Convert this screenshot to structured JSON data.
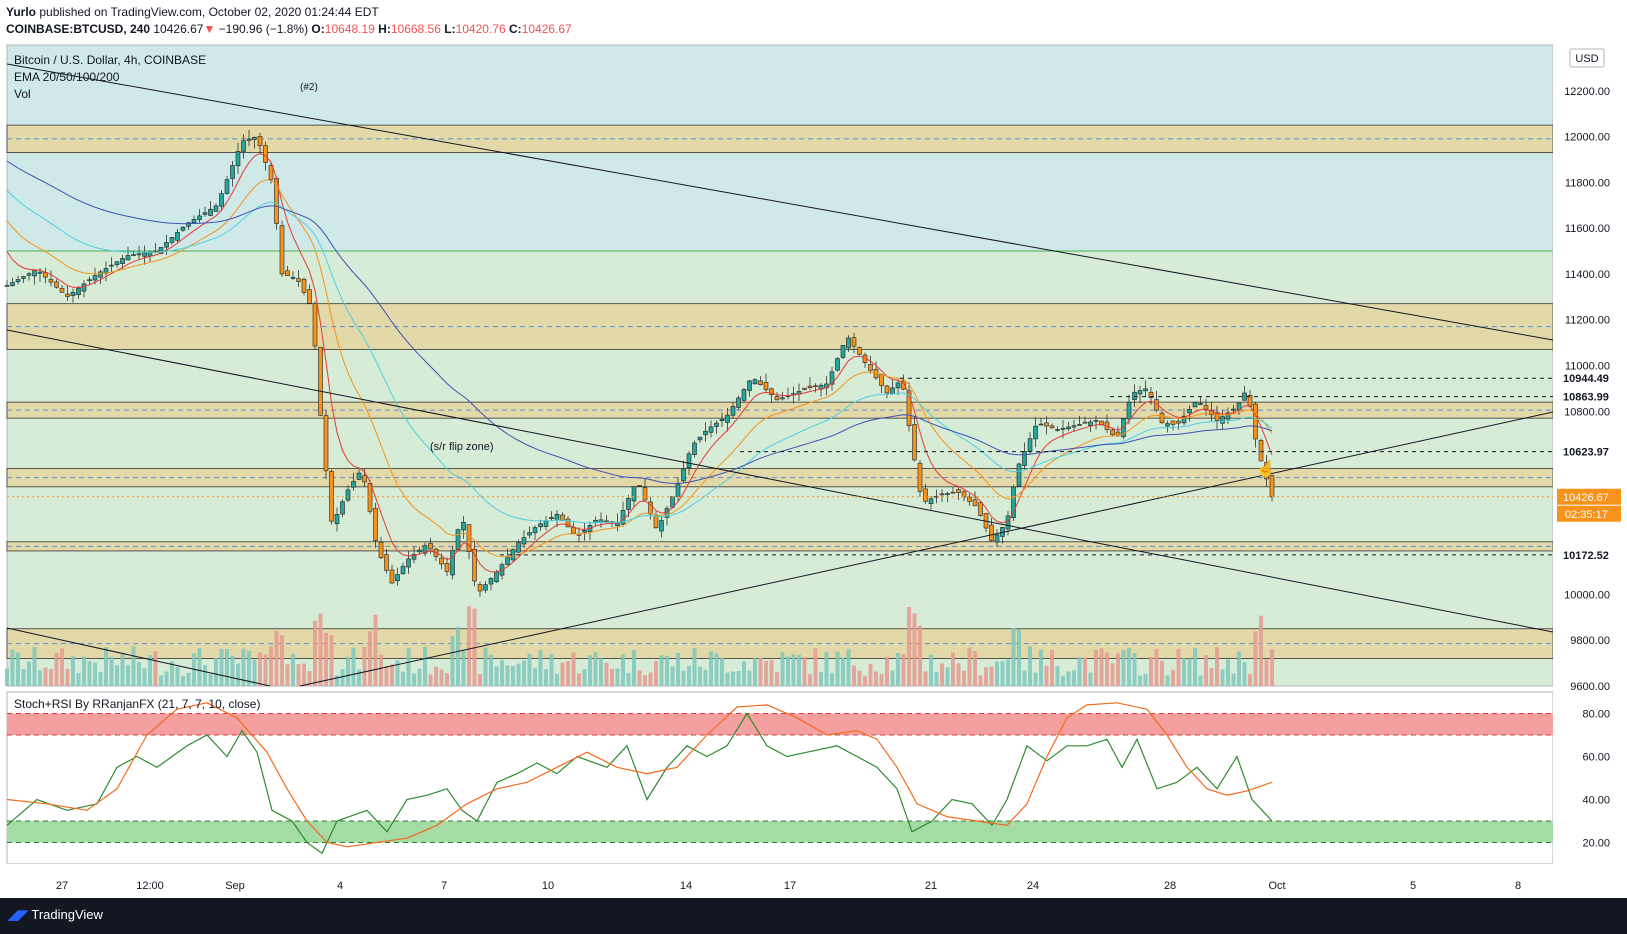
{
  "header": {
    "author": "Yurlo",
    "published": "published on TradingView.com, October 02, 2020 01:24:44 EDT",
    "symbol": "COINBASE:BTCUSD, 240",
    "last": "10426.67",
    "change": "−190.96 (−1.8%)",
    "o_label": "O:",
    "o": "10648.19",
    "h_label": "H:",
    "h": "10668.56",
    "l_label": "L:",
    "l": "10420.76",
    "c_label": "C:",
    "c": "10426.67"
  },
  "legend": {
    "title": "Bitcoin / U.S. Dollar, 4h, COINBASE",
    "ema": "EMA 20/50/100/200",
    "vol": "Vol",
    "label_2": "(#2)",
    "flip_zone": "(s/r flip zone)"
  },
  "currency": "USD",
  "oscillator": {
    "title": "Stoch+RSI By RRanjanFX (21, 7, 7, 10, close)"
  },
  "footer": {
    "brand": "TradingView"
  },
  "colors": {
    "bull": "#26a69a",
    "bear": "#f7931a",
    "blue_zone": "#cfe9e9",
    "green_zone": "#d6ecd6",
    "sr_zone": "#e3d9a8",
    "price_tag": "#f7931a"
  },
  "chart_data": [
    {
      "type": "candlestick",
      "title": "Bitcoin / U.S. Dollar, 4h, COINBASE",
      "ylim": [
        9600,
        12400
      ],
      "y_ticks": [
        "12200.00",
        "12000.00",
        "11800.00",
        "11600.00",
        "11400.00",
        "11200.00",
        "11000.00",
        "10800.00",
        "10000.00",
        "9800.00",
        "9600.00"
      ],
      "x_ticks": [
        "27",
        "12:00",
        "Sep",
        "4",
        "7",
        "10",
        "14",
        "17",
        "21",
        "24",
        "28",
        "Oct",
        "5",
        "8"
      ],
      "price_labels": [
        {
          "value": 10944.49,
          "text": "10944.49"
        },
        {
          "value": 10863.99,
          "text": "10863.99"
        },
        {
          "value": 10623.97,
          "text": "10623.97"
        },
        {
          "value": 10426.67,
          "text": "10426.67",
          "sub": "02:35:17"
        },
        {
          "value": 10172.52,
          "text": "10172.52"
        }
      ],
      "zones": [
        {
          "from": 11930,
          "to": 12050,
          "kind": "sr"
        },
        {
          "from": 11070,
          "to": 11270,
          "kind": "sr"
        },
        {
          "from": 10770,
          "to": 10840,
          "kind": "sr"
        },
        {
          "from": 10470,
          "to": 10550,
          "kind": "sr"
        },
        {
          "from": 10190,
          "to": 10230,
          "kind": "sr"
        },
        {
          "from": 9720,
          "to": 9850,
          "kind": "sr"
        }
      ],
      "ema_series": [
        "EMA 20",
        "EMA 50",
        "EMA 100",
        "EMA 200"
      ],
      "close_points": [
        [
          0,
          11350
        ],
        [
          30,
          11420
        ],
        [
          60,
          11300
        ],
        [
          90,
          11400
        ],
        [
          120,
          11480
        ],
        [
          150,
          11500
        ],
        [
          180,
          11620
        ],
        [
          210,
          11700
        ],
        [
          235,
          11980
        ],
        [
          250,
          12000
        ],
        [
          265,
          11800
        ],
        [
          275,
          11400
        ],
        [
          290,
          11380
        ],
        [
          305,
          11250
        ],
        [
          315,
          10700
        ],
        [
          325,
          10300
        ],
        [
          340,
          10450
        ],
        [
          355,
          10550
        ],
        [
          370,
          10200
        ],
        [
          385,
          10050
        ],
        [
          400,
          10150
        ],
        [
          420,
          10220
        ],
        [
          440,
          10100
        ],
        [
          455,
          10350
        ],
        [
          470,
          10000
        ],
        [
          490,
          10100
        ],
        [
          510,
          10220
        ],
        [
          530,
          10300
        ],
        [
          550,
          10350
        ],
        [
          570,
          10250
        ],
        [
          590,
          10330
        ],
        [
          610,
          10310
        ],
        [
          630,
          10500
        ],
        [
          650,
          10280
        ],
        [
          670,
          10470
        ],
        [
          685,
          10650
        ],
        [
          700,
          10720
        ],
        [
          720,
          10780
        ],
        [
          745,
          10950
        ],
        [
          770,
          10850
        ],
        [
          800,
          10900
        ],
        [
          820,
          10920
        ],
        [
          840,
          11130
        ],
        [
          860,
          11000
        ],
        [
          880,
          10880
        ],
        [
          895,
          10940
        ],
        [
          905,
          10650
        ],
        [
          915,
          10400
        ],
        [
          930,
          10430
        ],
        [
          950,
          10450
        ],
        [
          970,
          10380
        ],
        [
          985,
          10230
        ],
        [
          1000,
          10320
        ],
        [
          1010,
          10550
        ],
        [
          1030,
          10750
        ],
        [
          1050,
          10720
        ],
        [
          1070,
          10740
        ],
        [
          1090,
          10760
        ],
        [
          1110,
          10680
        ],
        [
          1125,
          10880
        ],
        [
          1140,
          10900
        ],
        [
          1155,
          10750
        ],
        [
          1170,
          10740
        ],
        [
          1190,
          10850
        ],
        [
          1210,
          10760
        ],
        [
          1230,
          10820
        ],
        [
          1240,
          10900
        ],
        [
          1250,
          10640
        ],
        [
          1265,
          10426
        ]
      ]
    },
    {
      "type": "line",
      "title": "Stoch+RSI By RRanjanFX (21, 7, 7, 10, close)",
      "ylim": [
        10,
        90
      ],
      "y_ticks": [
        "80.00",
        "60.00",
        "40.00",
        "20.00"
      ],
      "bands": [
        {
          "from": 70,
          "to": 80,
          "color": "red"
        },
        {
          "from": 20,
          "to": 30,
          "color": "green"
        }
      ],
      "series": [
        {
          "points": [
            [
              0,
              28
            ],
            [
              30,
              40
            ],
            [
              60,
              35
            ],
            [
              90,
              38
            ],
            [
              110,
              55
            ],
            [
              130,
              60
            ],
            [
              150,
              55
            ],
            [
              180,
              65
            ],
            [
              200,
              70
            ],
            [
              220,
              60
            ],
            [
              235,
              72
            ],
            [
              250,
              62
            ],
            [
              265,
              35
            ],
            [
              285,
              30
            ],
            [
              300,
              20
            ],
            [
              315,
              15
            ],
            [
              330,
              30
            ],
            [
              360,
              35
            ],
            [
              380,
              25
            ],
            [
              400,
              40
            ],
            [
              420,
              42
            ],
            [
              440,
              45
            ],
            [
              455,
              35
            ],
            [
              470,
              30
            ],
            [
              490,
              48
            ],
            [
              510,
              52
            ],
            [
              530,
              57
            ],
            [
              550,
              52
            ],
            [
              570,
              60
            ],
            [
              600,
              55
            ],
            [
              620,
              65
            ],
            [
              640,
              40
            ],
            [
              660,
              55
            ],
            [
              680,
              65
            ],
            [
              700,
              60
            ],
            [
              720,
              65
            ],
            [
              740,
              80
            ],
            [
              760,
              65
            ],
            [
              780,
              60
            ],
            [
              800,
              62
            ],
            [
              830,
              65
            ],
            [
              850,
              60
            ],
            [
              870,
              55
            ],
            [
              890,
              45
            ],
            [
              905,
              25
            ],
            [
              925,
              30
            ],
            [
              945,
              40
            ],
            [
              965,
              38
            ],
            [
              985,
              28
            ],
            [
              1000,
              40
            ],
            [
              1020,
              65
            ],
            [
              1040,
              58
            ],
            [
              1060,
              65
            ],
            [
              1080,
              65
            ],
            [
              1100,
              68
            ],
            [
              1115,
              55
            ],
            [
              1130,
              68
            ],
            [
              1150,
              45
            ],
            [
              1170,
              48
            ],
            [
              1190,
              55
            ],
            [
              1210,
              45
            ],
            [
              1230,
              60
            ],
            [
              1245,
              40
            ],
            [
              1265,
              30
            ]
          ]
        },
        {
          "points": [
            [
              0,
              40
            ],
            [
              40,
              38
            ],
            [
              80,
              35
            ],
            [
              110,
              45
            ],
            [
              140,
              70
            ],
            [
              170,
              82
            ],
            [
              200,
              85
            ],
            [
              230,
              78
            ],
            [
              260,
              62
            ],
            [
              280,
              45
            ],
            [
              300,
              30
            ],
            [
              320,
              20
            ],
            [
              340,
              18
            ],
            [
              370,
              20
            ],
            [
              400,
              22
            ],
            [
              430,
              28
            ],
            [
              460,
              38
            ],
            [
              490,
              45
            ],
            [
              520,
              48
            ],
            [
              550,
              55
            ],
            [
              580,
              62
            ],
            [
              610,
              55
            ],
            [
              640,
              52
            ],
            [
              670,
              55
            ],
            [
              700,
              70
            ],
            [
              730,
              83
            ],
            [
              760,
              84
            ],
            [
              790,
              78
            ],
            [
              820,
              70
            ],
            [
              850,
              72
            ],
            [
              870,
              68
            ],
            [
              890,
              55
            ],
            [
              910,
              38
            ],
            [
              940,
              32
            ],
            [
              970,
              30
            ],
            [
              1000,
              28
            ],
            [
              1020,
              38
            ],
            [
              1040,
              60
            ],
            [
              1060,
              78
            ],
            [
              1080,
              84
            ],
            [
              1110,
              85
            ],
            [
              1140,
              82
            ],
            [
              1160,
              70
            ],
            [
              1180,
              55
            ],
            [
              1200,
              45
            ],
            [
              1220,
              42
            ],
            [
              1240,
              44
            ],
            [
              1265,
              48
            ]
          ]
        }
      ]
    }
  ]
}
